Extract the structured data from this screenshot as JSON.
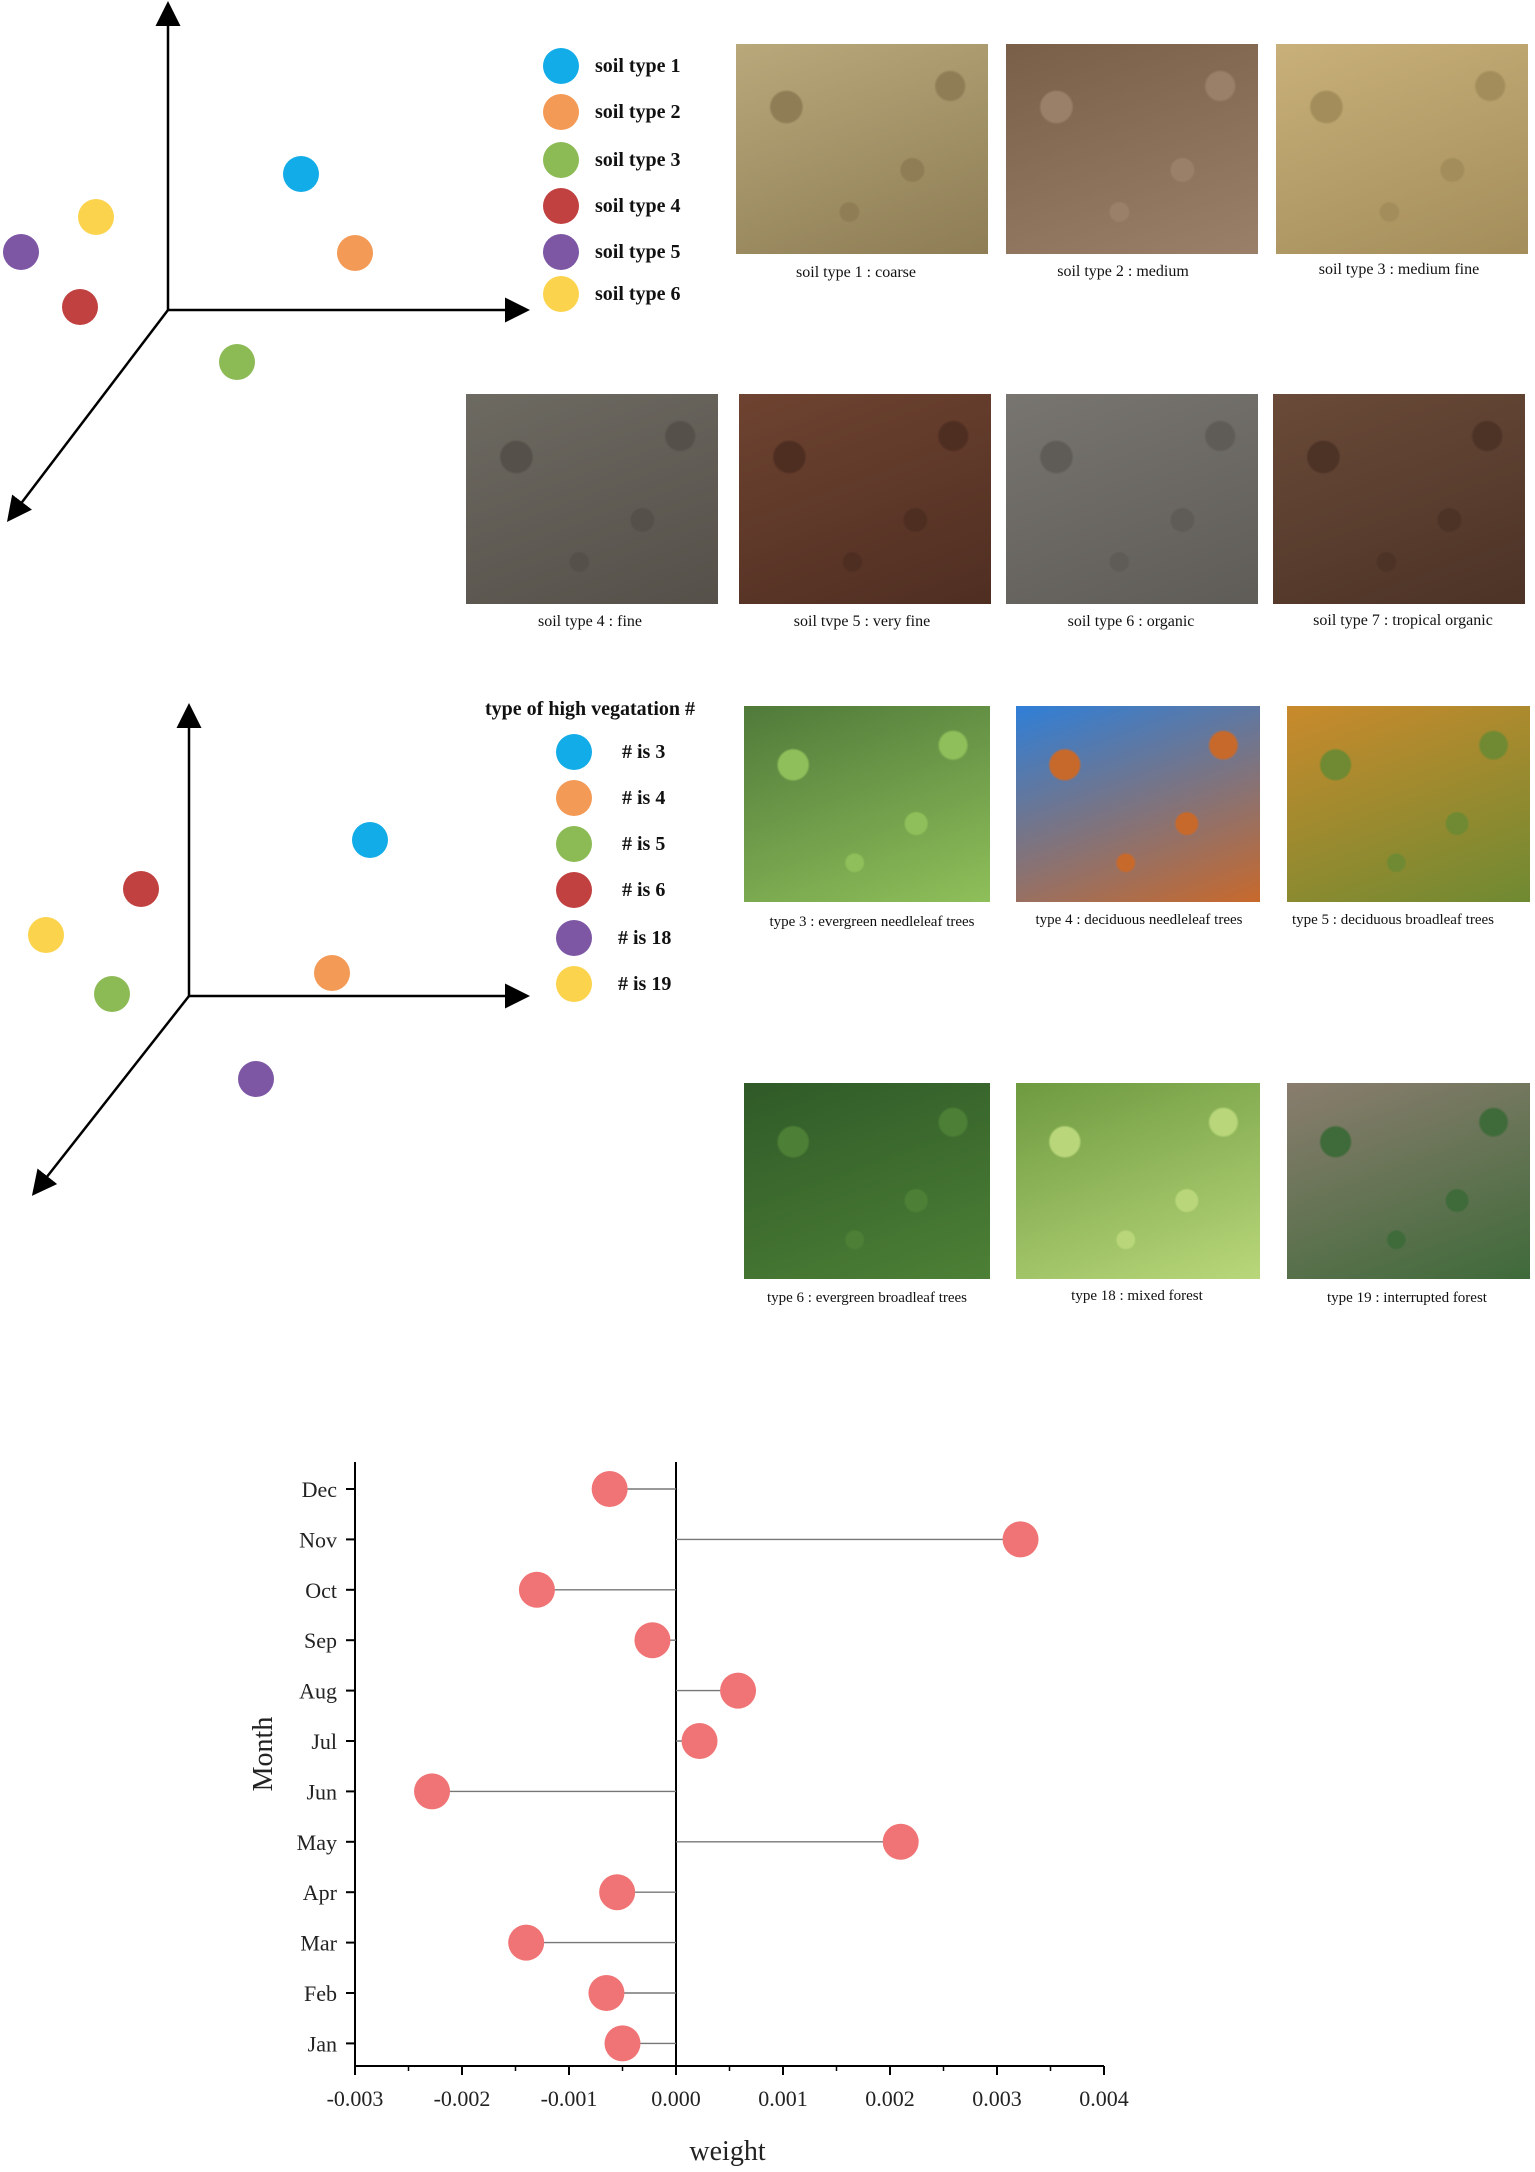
{
  "soil": {
    "legend": [
      {
        "label": "soil type 1",
        "color": "#12ace8"
      },
      {
        "label": "soil type 2",
        "color": "#f39a56"
      },
      {
        "label": "soil type 3",
        "color": "#8cba55"
      },
      {
        "label": "soil type 4",
        "color": "#c0413f"
      },
      {
        "label": "soil type 5",
        "color": "#7d57a4"
      },
      {
        "label": "soil type 6",
        "color": "#fbd34c"
      }
    ],
    "photos": [
      {
        "caption": "soil type 1 : coarse",
        "base": "#b8a87a",
        "speck": "#8e7d55"
      },
      {
        "caption": "soil type 2 : medium",
        "base": "#7a5f48",
        "speck": "#9a8068"
      },
      {
        "caption": "soil type 3 : medium fine",
        "base": "#c9b07a",
        "speck": "#a38d5a"
      },
      {
        "caption": "soil type 4 : fine",
        "base": "#6d6a62",
        "speck": "#555049"
      },
      {
        "caption": "soil tvpe 5 : very fine",
        "base": "#6e4330",
        "speck": "#4f2e22"
      },
      {
        "caption": "soil type 6 : organic",
        "base": "#787570",
        "speck": "#5f5c57"
      },
      {
        "caption": "soil type 7 : tropical organic",
        "base": "#6a4a38",
        "speck": "#4c3326"
      }
    ]
  },
  "vegetation": {
    "legend_title": "type of high vegatation #",
    "legend": [
      {
        "label": "#  is  3",
        "color": "#12ace8"
      },
      {
        "label": "#  is  4",
        "color": "#f39a56"
      },
      {
        "label": "#  is  5",
        "color": "#8cba55"
      },
      {
        "label": "#  is  6",
        "color": "#c0413f"
      },
      {
        "label": "#  is  18",
        "color": "#7d57a4"
      },
      {
        "label": "#  is  19",
        "color": "#fbd34c"
      }
    ],
    "photos": [
      {
        "caption": "type 3 : evergreen needleleaf trees",
        "base": "#4f7a3a",
        "speck": "#8fbf5a"
      },
      {
        "caption": "type 4 : deciduous needleleaf trees",
        "base": "#2f7fd8",
        "speck": "#c8692c"
      },
      {
        "caption": "type 5 : deciduous broadleaf trees",
        "base": "#c98a2c",
        "speck": "#6f8a32"
      },
      {
        "caption": "type 6 : evergreen broadleaf trees",
        "base": "#2f5a28",
        "speck": "#4d8036"
      },
      {
        "caption": "type 18 : mixed forest",
        "base": "#6e9a40",
        "speck": "#b9d77a"
      },
      {
        "caption": "type 19 : interrupted forest",
        "base": "#8a7d6e",
        "speck": "#3f6a3a"
      }
    ]
  },
  "chart_data": {
    "type": "scatter",
    "style": "lollipop",
    "xlabel": "weight",
    "ylabel": "Month",
    "xlim": [
      -0.003,
      0.004
    ],
    "xticks": [
      "-0.003",
      "-0.002",
      "-0.001",
      "0.000",
      "0.001",
      "0.002",
      "0.003",
      "0.004"
    ],
    "xtick_values": [
      -0.003,
      -0.002,
      -0.001,
      0.0,
      0.001,
      0.002,
      0.003,
      0.004
    ],
    "categories": [
      "Jan",
      "Feb",
      "Mar",
      "Apr",
      "May",
      "Jun",
      "Jul",
      "Aug",
      "Sep",
      "Oct",
      "Nov",
      "Dec"
    ],
    "values": [
      -0.0005,
      -0.00065,
      -0.0014,
      -0.00055,
      0.0021,
      -0.00228,
      0.00022,
      0.00058,
      -0.00022,
      -0.0013,
      0.00322,
      -0.00062
    ],
    "marker_color": "#f07475",
    "grid": false
  }
}
